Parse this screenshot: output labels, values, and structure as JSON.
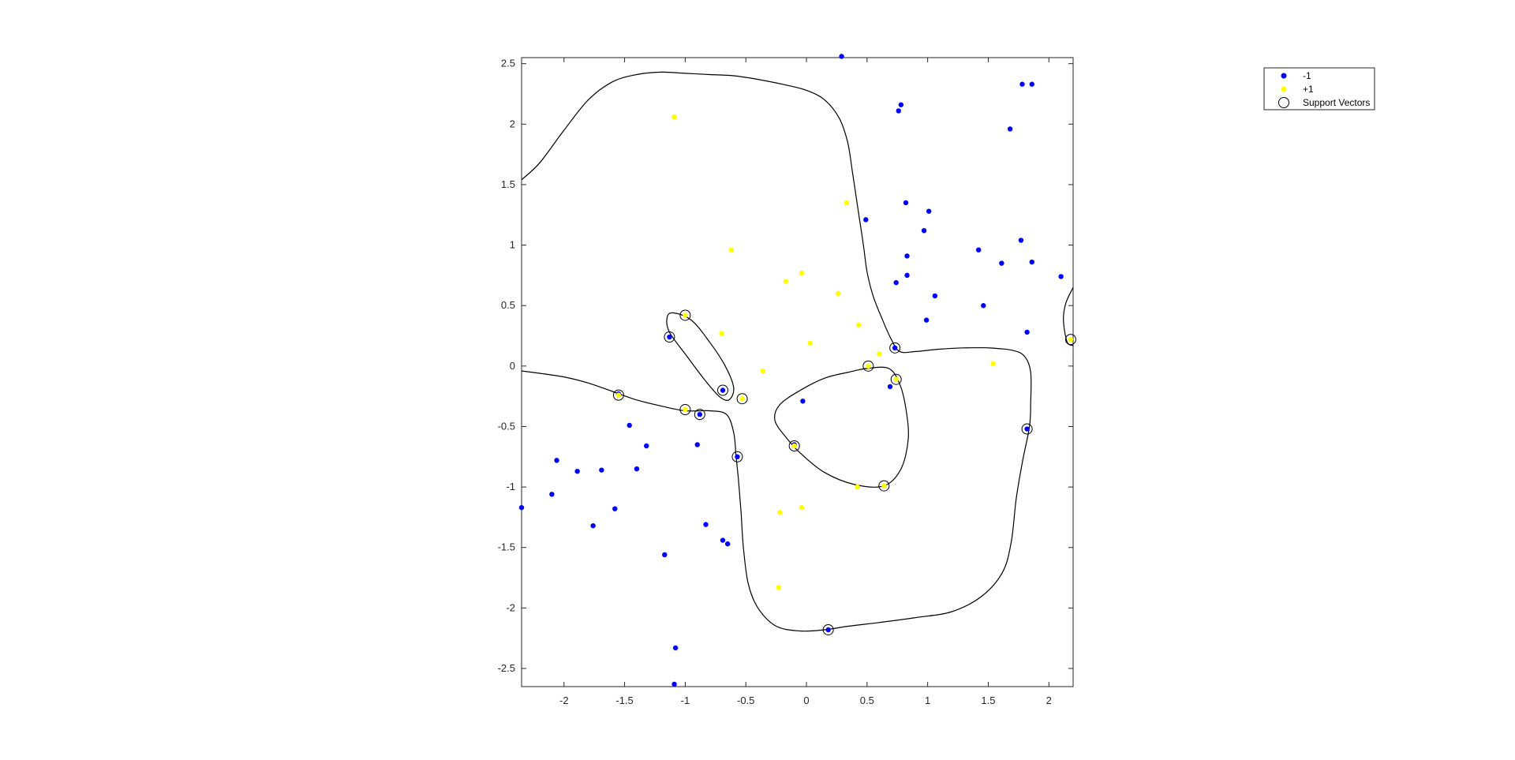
{
  "chart_data": {
    "type": "scatter",
    "title": "",
    "xlabel": "",
    "ylabel": "",
    "xlim": [
      -2.35,
      2.2
    ],
    "ylim": [
      -2.65,
      2.55
    ],
    "xticks": [
      -2,
      -1.5,
      -1,
      -0.5,
      0,
      0.5,
      1,
      1.5,
      2
    ],
    "xtick_labels": [
      "-2",
      "-1.5",
      "-1",
      "-0.5",
      "0",
      "0.5",
      "1",
      "1.5",
      "2"
    ],
    "yticks": [
      -2.5,
      -2,
      -1.5,
      -1,
      -0.5,
      0,
      0.5,
      1,
      1.5,
      2,
      2.5
    ],
    "ytick_labels": [
      "-2.5",
      "-2",
      "-1.5",
      "-1",
      "-0.5",
      "0",
      "0.5",
      "1",
      "1.5",
      "2",
      "2.5"
    ],
    "grid": false,
    "legend_position": "top-right",
    "series": [
      {
        "name": "-1",
        "color": "#0000ff",
        "marker": "filled-dot",
        "points": [
          [
            0.29,
            2.56
          ],
          [
            0.78,
            2.16
          ],
          [
            0.76,
            2.11
          ],
          [
            1.78,
            2.33
          ],
          [
            1.86,
            2.33
          ],
          [
            1.68,
            1.96
          ],
          [
            0.82,
            1.35
          ],
          [
            0.49,
            1.21
          ],
          [
            1.01,
            1.28
          ],
          [
            0.97,
            1.12
          ],
          [
            1.77,
            1.04
          ],
          [
            1.42,
            0.96
          ],
          [
            0.83,
            0.91
          ],
          [
            1.61,
            0.85
          ],
          [
            1.86,
            0.86
          ],
          [
            2.1,
            0.74
          ],
          [
            0.83,
            0.75
          ],
          [
            0.74,
            0.69
          ],
          [
            1.06,
            0.58
          ],
          [
            1.46,
            0.5
          ],
          [
            0.99,
            0.38
          ],
          [
            1.82,
            0.28
          ],
          [
            0.73,
            0.15
          ],
          [
            0.69,
            -0.17
          ],
          [
            1.82,
            -0.52
          ],
          [
            -0.03,
            -0.29
          ],
          [
            -1.13,
            0.24
          ],
          [
            -0.69,
            -0.2
          ],
          [
            -0.88,
            -0.4
          ],
          [
            -0.57,
            -0.75
          ],
          [
            -0.1,
            -0.65
          ],
          [
            0.18,
            -2.18
          ],
          [
            -1.46,
            -0.49
          ],
          [
            -1.32,
            -0.66
          ],
          [
            -0.9,
            -0.65
          ],
          [
            -2.06,
            -0.78
          ],
          [
            -1.89,
            -0.87
          ],
          [
            -1.69,
            -0.86
          ],
          [
            -1.4,
            -0.85
          ],
          [
            -2.1,
            -1.06
          ],
          [
            -2.35,
            -1.17
          ],
          [
            -1.58,
            -1.18
          ],
          [
            -1.76,
            -1.32
          ],
          [
            -0.83,
            -1.31
          ],
          [
            -1.17,
            -1.56
          ],
          [
            -0.69,
            -1.44
          ],
          [
            -0.65,
            -1.47
          ],
          [
            -1.08,
            -2.33
          ],
          [
            -1.09,
            -2.63
          ],
          [
            -1.55,
            -0.23
          ]
        ]
      },
      {
        "name": "+1",
        "color": "#ffff00",
        "marker": "filled-dot",
        "points": [
          [
            -1.09,
            2.06
          ],
          [
            0.33,
            1.35
          ],
          [
            -0.62,
            0.96
          ],
          [
            -0.04,
            0.77
          ],
          [
            -0.17,
            0.7
          ],
          [
            0.26,
            0.6
          ],
          [
            0.43,
            0.34
          ],
          [
            -0.7,
            0.27
          ],
          [
            0.03,
            0.19
          ],
          [
            0.6,
            0.1
          ],
          [
            1.54,
            0.02
          ],
          [
            -0.36,
            -0.04
          ],
          [
            0.51,
            0.0
          ],
          [
            0.74,
            -0.11
          ],
          [
            -0.53,
            -0.27
          ],
          [
            -1.0,
            -0.36
          ],
          [
            -1.55,
            -0.24
          ],
          [
            -0.1,
            -0.66
          ],
          [
            0.42,
            -1.0
          ],
          [
            0.64,
            -0.99
          ],
          [
            -0.22,
            -1.21
          ],
          [
            -0.04,
            -1.17
          ],
          [
            -0.23,
            -1.83
          ],
          [
            -1.0,
            0.42
          ],
          [
            2.18,
            0.22
          ]
        ]
      },
      {
        "name": "Support Vectors",
        "color": "#000000",
        "marker": "open-circle",
        "points": [
          [
            -1.0,
            0.42
          ],
          [
            -1.13,
            0.24
          ],
          [
            -0.69,
            -0.2
          ],
          [
            -0.53,
            -0.27
          ],
          [
            -1.55,
            -0.24
          ],
          [
            -1.0,
            -0.36
          ],
          [
            -0.88,
            -0.4
          ],
          [
            -0.57,
            -0.75
          ],
          [
            -0.1,
            -0.66
          ],
          [
            0.51,
            0.0
          ],
          [
            0.74,
            -0.11
          ],
          [
            0.73,
            0.15
          ],
          [
            0.64,
            -0.99
          ],
          [
            1.82,
            -0.52
          ],
          [
            0.18,
            -2.18
          ],
          [
            2.18,
            0.22
          ]
        ]
      }
    ],
    "decision_boundaries": [
      {
        "name": "",
        "color": "#000000",
        "points": [
          [
            -2.35,
            1.54
          ],
          [
            -2.2,
            1.68
          ],
          [
            -2.0,
            1.95
          ],
          [
            -1.8,
            2.2
          ],
          [
            -1.6,
            2.35
          ],
          [
            -1.4,
            2.41
          ],
          [
            -1.2,
            2.43
          ],
          [
            -1.0,
            2.42
          ],
          [
            -0.8,
            2.41
          ],
          [
            -0.6,
            2.4
          ],
          [
            -0.4,
            2.37
          ],
          [
            -0.2,
            2.33
          ],
          [
            0.0,
            2.28
          ],
          [
            0.15,
            2.2
          ],
          [
            0.27,
            2.05
          ],
          [
            0.34,
            1.85
          ],
          [
            0.38,
            1.6
          ],
          [
            0.41,
            1.4
          ],
          [
            0.44,
            1.2
          ],
          [
            0.47,
            1.0
          ],
          [
            0.5,
            0.78
          ],
          [
            0.55,
            0.58
          ],
          [
            0.62,
            0.4
          ],
          [
            0.7,
            0.22
          ],
          [
            0.77,
            0.12
          ],
          [
            0.9,
            0.12
          ],
          [
            1.1,
            0.14
          ],
          [
            1.3,
            0.15
          ],
          [
            1.5,
            0.15
          ],
          [
            1.7,
            0.13
          ],
          [
            1.8,
            0.08
          ],
          [
            1.85,
            -0.05
          ],
          [
            1.85,
            -0.3
          ],
          [
            1.84,
            -0.5
          ],
          [
            1.78,
            -0.8
          ],
          [
            1.73,
            -1.1
          ],
          [
            1.69,
            -1.45
          ],
          [
            1.62,
            -1.7
          ],
          [
            1.45,
            -1.9
          ],
          [
            1.2,
            -2.03
          ],
          [
            0.9,
            -2.08
          ],
          [
            0.6,
            -2.12
          ],
          [
            0.35,
            -2.15
          ],
          [
            0.15,
            -2.18
          ],
          [
            -0.05,
            -2.19
          ],
          [
            -0.25,
            -2.15
          ],
          [
            -0.4,
            -2.0
          ],
          [
            -0.48,
            -1.8
          ],
          [
            -0.52,
            -1.5
          ],
          [
            -0.54,
            -1.2
          ],
          [
            -0.56,
            -0.95
          ],
          [
            -0.58,
            -0.75
          ],
          [
            -0.6,
            -0.55
          ],
          [
            -0.66,
            -0.4
          ],
          [
            -0.8,
            -0.37
          ],
          [
            -1.0,
            -0.37
          ],
          [
            -1.2,
            -0.33
          ],
          [
            -1.4,
            -0.28
          ],
          [
            -1.6,
            -0.21
          ],
          [
            -1.8,
            -0.14
          ],
          [
            -2.0,
            -0.09
          ],
          [
            -2.2,
            -0.06
          ],
          [
            -2.35,
            -0.04
          ]
        ]
      },
      {
        "name": "",
        "color": "#000000",
        "closed": true,
        "points": [
          [
            -1.1,
            0.44
          ],
          [
            -0.95,
            0.38
          ],
          [
            -0.8,
            0.2
          ],
          [
            -0.67,
            0.0
          ],
          [
            -0.6,
            -0.18
          ],
          [
            -0.64,
            -0.28
          ],
          [
            -0.72,
            -0.25
          ],
          [
            -0.85,
            -0.1
          ],
          [
            -1.0,
            0.1
          ],
          [
            -1.13,
            0.28
          ],
          [
            -1.15,
            0.4
          ]
        ]
      },
      {
        "name": "",
        "color": "#000000",
        "closed": true,
        "points": [
          [
            0.5,
            -0.02
          ],
          [
            0.35,
            -0.05
          ],
          [
            0.15,
            -0.1
          ],
          [
            -0.05,
            -0.2
          ],
          [
            -0.22,
            -0.32
          ],
          [
            -0.26,
            -0.45
          ],
          [
            -0.16,
            -0.6
          ],
          [
            -0.05,
            -0.72
          ],
          [
            0.15,
            -0.88
          ],
          [
            0.4,
            -0.98
          ],
          [
            0.64,
            -0.99
          ],
          [
            0.78,
            -0.85
          ],
          [
            0.84,
            -0.6
          ],
          [
            0.82,
            -0.35
          ],
          [
            0.77,
            -0.15
          ],
          [
            0.68,
            -0.02
          ]
        ]
      },
      {
        "name": "",
        "color": "#000000",
        "points": [
          [
            2.2,
            0.65
          ],
          [
            2.14,
            0.52
          ],
          [
            2.12,
            0.38
          ],
          [
            2.15,
            0.2
          ],
          [
            2.2,
            0.17
          ]
        ]
      }
    ]
  },
  "legend": {
    "items": [
      {
        "label": "-1",
        "marker": "filled-dot",
        "color": "#0000ff"
      },
      {
        "label": "+1",
        "marker": "filled-dot",
        "color": "#ffff00"
      },
      {
        "label": "Support Vectors",
        "marker": "open-circle",
        "color": "#000000"
      }
    ]
  }
}
